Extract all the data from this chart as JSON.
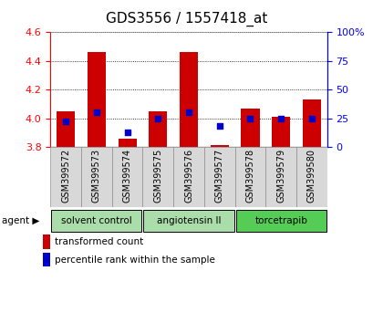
{
  "title": "GDS3556 / 1557418_at",
  "samples": [
    "GSM399572",
    "GSM399573",
    "GSM399574",
    "GSM399575",
    "GSM399576",
    "GSM399577",
    "GSM399578",
    "GSM399579",
    "GSM399580"
  ],
  "bar_tops": [
    4.05,
    4.46,
    3.86,
    4.05,
    4.46,
    3.81,
    4.07,
    4.01,
    4.13
  ],
  "bar_bottom": 3.8,
  "percentile_values": [
    22,
    30,
    13,
    25,
    30,
    18,
    25,
    25,
    25
  ],
  "ylim_left": [
    3.8,
    4.6
  ],
  "ylim_right": [
    0,
    100
  ],
  "yticks_left": [
    3.8,
    4.0,
    4.2,
    4.4,
    4.6
  ],
  "yticks_right": [
    0,
    25,
    50,
    75,
    100
  ],
  "ytick_labels_right": [
    "0",
    "25",
    "50",
    "75",
    "100%"
  ],
  "bar_color": "#cc0000",
  "dot_color": "#0000cc",
  "groups": [
    {
      "label": "solvent control",
      "start": 0,
      "end": 3,
      "color": "#aaddaa"
    },
    {
      "label": "angiotensin II",
      "start": 3,
      "end": 6,
      "color": "#aaddaa"
    },
    {
      "label": "torcetrapib",
      "start": 6,
      "end": 9,
      "color": "#55cc55"
    }
  ],
  "agent_label": "agent",
  "legend_bar_label": "transformed count",
  "legend_dot_label": "percentile rank within the sample",
  "title_fontsize": 11,
  "tick_fontsize": 8,
  "label_fontsize": 7,
  "bar_width": 0.6
}
